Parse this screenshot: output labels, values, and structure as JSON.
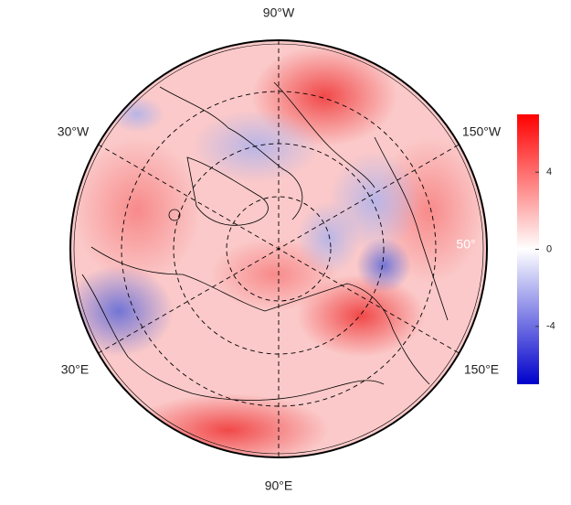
{
  "map": {
    "meridian_labels": [
      "90°W",
      "30°W",
      "150°W",
      "30°E",
      "150°E",
      "90°E"
    ],
    "parallel_label": "50°",
    "colorbar": {
      "lim": [
        -7,
        7
      ],
      "ticks": [
        4,
        0,
        -4
      ],
      "colors": [
        "#0000cc",
        "#ffffff",
        "#ff0000"
      ]
    }
  }
}
